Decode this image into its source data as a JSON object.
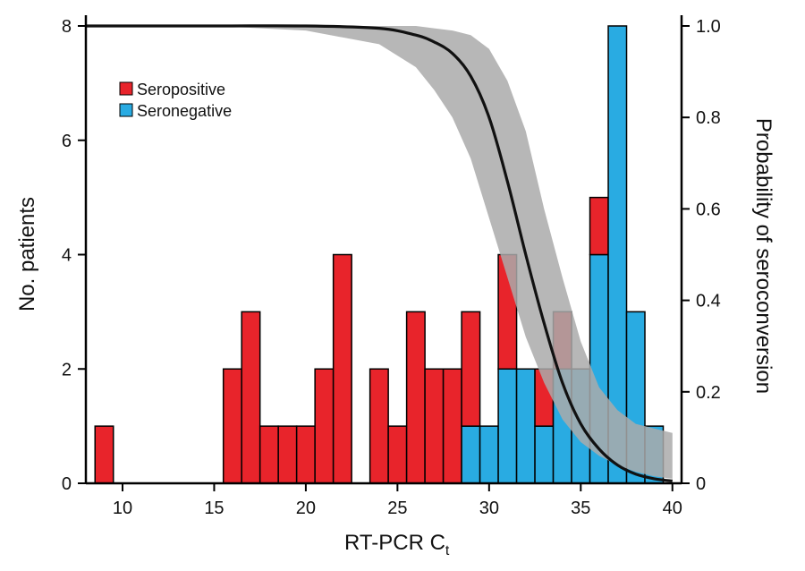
{
  "chart_data": {
    "type": "bar",
    "title": "",
    "xlabel": "RT-PCR C",
    "xlabel_subscript": "t",
    "ylabel": "No. patients",
    "y2label": "Probability of seroconversion",
    "xlim": [
      8,
      40.5
    ],
    "ylim": [
      0,
      8
    ],
    "y2lim": [
      0,
      1.0
    ],
    "x_ticks": [
      10,
      15,
      20,
      25,
      30,
      35,
      40
    ],
    "y_ticks": [
      0,
      2,
      4,
      6,
      8
    ],
    "y2_ticks": [
      "0",
      "0.2",
      "0.4",
      "0.6",
      "0.8",
      "1.0"
    ],
    "y2_tick_values": [
      0,
      0.2,
      0.4,
      0.6,
      0.8,
      1.0
    ],
    "bin_width": 1,
    "bin_starts": [
      8.5,
      15.5,
      16.5,
      17.5,
      18.5,
      19.5,
      20.5,
      21.5,
      23.5,
      24.5,
      25.5,
      26.5,
      27.5,
      28.5,
      29.5,
      30.5,
      31.5,
      32.5,
      33.5,
      34.5,
      35.5,
      36.5,
      37.5,
      38.5
    ],
    "series": [
      {
        "name": "Seronegative",
        "color": "#29abe2",
        "values": [
          0,
          0,
          0,
          0,
          0,
          0,
          0,
          0,
          0,
          0,
          0,
          0,
          0,
          1,
          1,
          2,
          2,
          1,
          2,
          2,
          4,
          8,
          3,
          1
        ]
      },
      {
        "name": "Seropositive",
        "color": "#e8242b",
        "values": [
          1,
          2,
          3,
          1,
          1,
          1,
          2,
          4,
          2,
          1,
          3,
          2,
          2,
          2,
          0,
          2,
          0,
          1,
          1,
          0,
          1,
          0,
          0,
          0
        ]
      }
    ],
    "curve": {
      "name": "Probability of seroconversion",
      "x": [
        8,
        15,
        20,
        24,
        26,
        27,
        28,
        29,
        30,
        31,
        32,
        33,
        34,
        35,
        36,
        37,
        38,
        39,
        40
      ],
      "fit": [
        1.0,
        1.0,
        1.0,
        0.995,
        0.98,
        0.965,
        0.94,
        0.89,
        0.8,
        0.66,
        0.5,
        0.35,
        0.22,
        0.13,
        0.075,
        0.04,
        0.02,
        0.01,
        0.005
      ],
      "lower": [
        1.0,
        1.0,
        0.99,
        0.96,
        0.91,
        0.86,
        0.8,
        0.71,
        0.58,
        0.45,
        0.32,
        0.22,
        0.14,
        0.09,
        0.06,
        0.04,
        0.025,
        0.015,
        0.01
      ],
      "upper": [
        1.0,
        1.0,
        1.0,
        1.0,
        1.0,
        0.995,
        0.99,
        0.98,
        0.95,
        0.88,
        0.77,
        0.6,
        0.45,
        0.31,
        0.21,
        0.16,
        0.13,
        0.12,
        0.11
      ],
      "band_color": "#aaaaaa",
      "line_color": "#111111"
    },
    "legend": {
      "position": "top-left",
      "items": [
        {
          "label": "Seropositive",
          "color": "#e8242b"
        },
        {
          "label": "Seronegative",
          "color": "#29abe2"
        }
      ]
    }
  }
}
